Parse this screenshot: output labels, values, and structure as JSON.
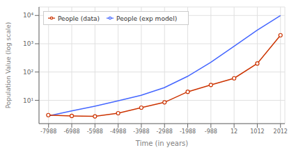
{
  "chart_data": {
    "type": "line",
    "xlabel": "Time (in years)",
    "ylabel": "Population Value (log scale)",
    "log": "y",
    "xlim": [
      -8400,
      2200
    ],
    "xticks": [
      -7988,
      -6988,
      -5988,
      -4988,
      -3988,
      -2988,
      -1988,
      -988,
      12,
      1012,
      2012
    ],
    "ylim": [
      1.5,
      20000
    ],
    "yticks": [
      {
        "value": 10,
        "label": "10¹"
      },
      {
        "value": 100,
        "label": "10²"
      },
      {
        "value": 1000,
        "label": "10³"
      },
      {
        "value": 10000,
        "label": "10⁴"
      }
    ],
    "grid": true,
    "legend": "upper left",
    "series": [
      {
        "name": "People (exp model)",
        "color": "#4466ff",
        "marker": "none",
        "line_style": "solid",
        "x": [
          -8000,
          -7000,
          -6000,
          -5000,
          -4000,
          -3000,
          -2000,
          -1000,
          0,
          1000,
          2012
        ],
        "values": [
          2.8,
          4.2,
          6.2,
          9.5,
          15.0,
          28.0,
          70.0,
          220.0,
          800.0,
          3000.0,
          10000.0
        ]
      },
      {
        "name": "People (data)",
        "color": "#cc3300",
        "marker": "circle",
        "line_style": "solid",
        "x": [
          -8000,
          -6988,
          -5988,
          -4988,
          -3988,
          -2988,
          -1988,
          -988,
          12,
          1012,
          2012
        ],
        "values": [
          3.0,
          2.8,
          2.7,
          3.5,
          5.5,
          8.5,
          20.0,
          35.0,
          60.0,
          200.0,
          2000.0
        ]
      }
    ]
  }
}
